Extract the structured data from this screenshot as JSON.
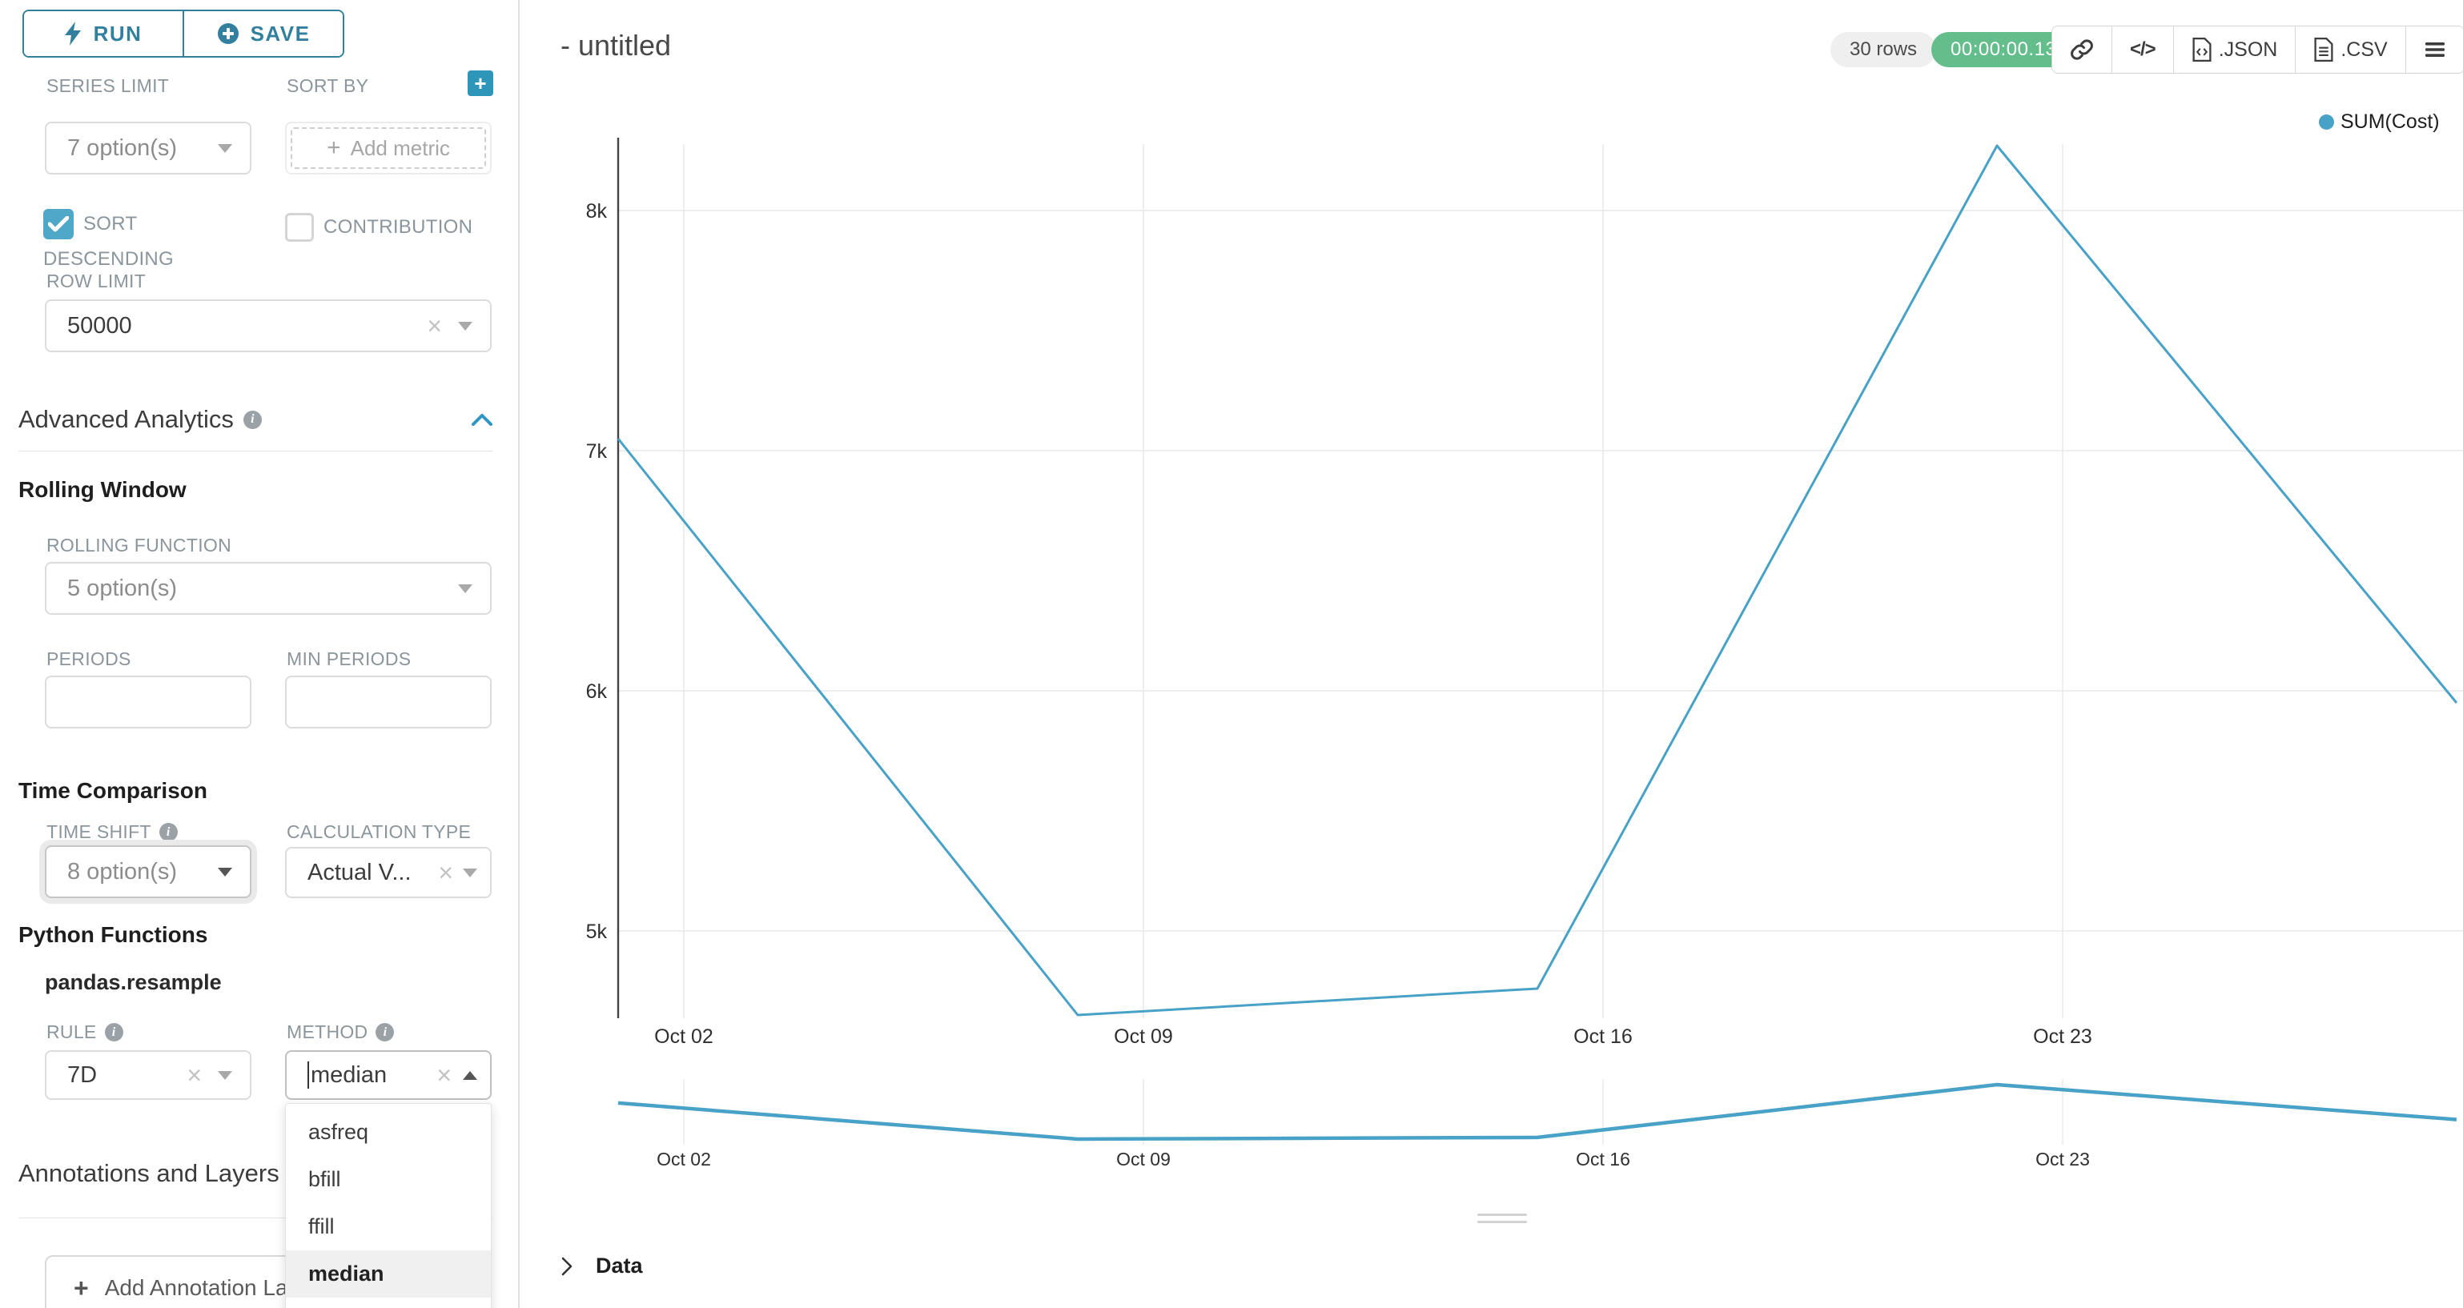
{
  "colors": {
    "primary_teal": "#33809e",
    "accent_teal": "#2e96b9",
    "checkbox_teal": "#4fa8c8",
    "line_blue": "#48a1c7",
    "success_green": "#63be8b",
    "grid_gray": "#e9e9e9",
    "axis_dark": "#444444",
    "label_gray": "#8a959c"
  },
  "toolbar": {
    "run_label": "RUN",
    "save_label": "SAVE"
  },
  "controls": {
    "series_limit": {
      "label": "SERIES LIMIT",
      "value": "7 option(s)"
    },
    "sort_by": {
      "label": "SORT BY",
      "placeholder": "Add metric"
    },
    "sort_descending": {
      "label": "SORT DESCENDING",
      "checked": true
    },
    "contribution": {
      "label": "CONTRIBUTION",
      "checked": false
    },
    "row_limit": {
      "label": "ROW LIMIT",
      "value": "50000"
    },
    "advanced_analytics": {
      "title": "Advanced Analytics"
    },
    "rolling_window": {
      "title": "Rolling Window"
    },
    "rolling_function": {
      "label": "ROLLING FUNCTION",
      "value": "5 option(s)"
    },
    "periods": {
      "label": "PERIODS",
      "value": ""
    },
    "min_periods": {
      "label": "MIN PERIODS",
      "value": ""
    },
    "time_comparison": {
      "title": "Time Comparison"
    },
    "time_shift": {
      "label": "TIME SHIFT",
      "value": "8 option(s)"
    },
    "calculation_type": {
      "label": "CALCULATION TYPE",
      "value": "Actual V..."
    },
    "python_functions": {
      "title": "Python Functions"
    },
    "pandas_resample": {
      "title": "pandas.resample"
    },
    "rule": {
      "label": "RULE",
      "value": "7D"
    },
    "method": {
      "label": "METHOD",
      "value": "median",
      "options": [
        "asfreq",
        "bfill",
        "ffill",
        "median"
      ],
      "highlighted": "median"
    },
    "annotations": {
      "title": "Annotations and Layers",
      "add_button_label": "Add Annotation Layer"
    }
  },
  "header": {
    "title": "- untitled",
    "rows_badge": "30 rows",
    "timer": "00:00:00.13",
    "export_json_label": ".JSON",
    "export_csv_label": ".CSV"
  },
  "data_panel": {
    "title": "Data"
  },
  "chart_data": {
    "type": "line",
    "series": [
      {
        "name": "SUM(Cost)",
        "x_dates": [
          "Oct 01",
          "Oct 08",
          "Oct 15",
          "Oct 22",
          "Oct 29"
        ],
        "x_days": [
          1,
          8,
          15,
          22,
          29
        ],
        "values": [
          7050,
          4650,
          4760,
          8270,
          5950
        ]
      }
    ],
    "x_axis": {
      "tick_days": [
        2,
        9,
        16,
        23
      ],
      "tick_labels": [
        "Oct 02",
        "Oct 09",
        "Oct 16",
        "Oct 23"
      ]
    },
    "y_axis": {
      "ticks": [
        5000,
        6000,
        7000,
        8000
      ],
      "tick_labels": [
        "5k",
        "6k",
        "7k",
        "8k"
      ],
      "range": [
        4580,
        8330
      ]
    },
    "legend": {
      "label": "SUM(Cost)",
      "position": "top-right"
    },
    "line_color": "#48a1c7",
    "grid": true,
    "has_mini_preview": true,
    "mini_preview_tick_labels": [
      "Oct 02",
      "Oct 09",
      "Oct 16",
      "Oct 23"
    ]
  }
}
